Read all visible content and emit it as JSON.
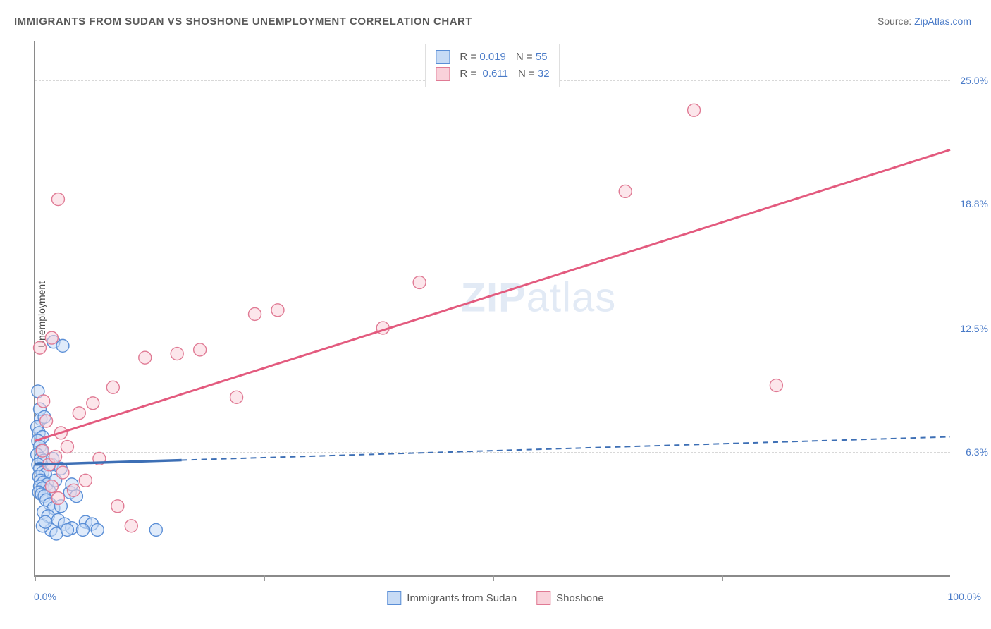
{
  "title": "IMMIGRANTS FROM SUDAN VS SHOSHONE UNEMPLOYMENT CORRELATION CHART",
  "source_label": "Source: ",
  "source_link_text": "ZipAtlas.com",
  "y_axis_label": "Unemployment",
  "watermark_prefix": "ZIP",
  "watermark_suffix": "atlas",
  "chart": {
    "type": "scatter-with-regression",
    "xlim": [
      0,
      100
    ],
    "ylim": [
      0,
      27
    ],
    "x_min_label": "0.0%",
    "x_max_label": "100.0%",
    "y_ticks": [
      {
        "value": 6.3,
        "label": "6.3%"
      },
      {
        "value": 12.5,
        "label": "12.5%"
      },
      {
        "value": 18.8,
        "label": "18.8%"
      },
      {
        "value": 25.0,
        "label": "25.0%"
      }
    ],
    "x_tick_marks": [
      0,
      25,
      50,
      75,
      100
    ],
    "background_color": "#ffffff",
    "grid_color": "#d8d8d8",
    "axis_color": "#8a8a8a"
  },
  "series": {
    "sudan": {
      "label": "Immigrants from Sudan",
      "R_label": "R = ",
      "R_value": "0.019",
      "N_label": "N = ",
      "N_value": "55",
      "fill": "#c7dbf5",
      "stroke": "#5a8ed6",
      "line_color": "#3d6fb5",
      "line_solid_end_x": 16,
      "line_y_at_0": 5.6,
      "line_y_at_100": 7.0,
      "points": [
        [
          0.3,
          9.3
        ],
        [
          0.6,
          7.9
        ],
        [
          0.2,
          7.5
        ],
        [
          0.4,
          7.2
        ],
        [
          0.8,
          7.0
        ],
        [
          0.3,
          6.8
        ],
        [
          0.5,
          6.5
        ],
        [
          0.7,
          6.3
        ],
        [
          0.2,
          6.1
        ],
        [
          0.6,
          5.9
        ],
        [
          0.9,
          5.8
        ],
        [
          0.3,
          5.6
        ],
        [
          0.5,
          5.4
        ],
        [
          0.8,
          5.2
        ],
        [
          1.1,
          5.1
        ],
        [
          0.4,
          5.0
        ],
        [
          0.6,
          4.8
        ],
        [
          0.9,
          4.7
        ],
        [
          1.3,
          4.6
        ],
        [
          0.5,
          4.5
        ],
        [
          0.8,
          4.4
        ],
        [
          1.5,
          4.3
        ],
        [
          0.4,
          4.2
        ],
        [
          0.7,
          4.1
        ],
        [
          1.0,
          4.0
        ],
        [
          1.8,
          5.6
        ],
        [
          2.2,
          4.8
        ],
        [
          2.8,
          5.4
        ],
        [
          1.2,
          3.8
        ],
        [
          1.6,
          3.6
        ],
        [
          2.0,
          3.4
        ],
        [
          0.9,
          3.2
        ],
        [
          1.4,
          3.0
        ],
        [
          2.5,
          2.8
        ],
        [
          3.2,
          2.6
        ],
        [
          4.0,
          2.4
        ],
        [
          5.5,
          2.7
        ],
        [
          6.2,
          2.6
        ],
        [
          3.8,
          4.2
        ],
        [
          1.7,
          2.3
        ],
        [
          2.3,
          2.1
        ],
        [
          0.8,
          2.5
        ],
        [
          1.1,
          2.7
        ],
        [
          2.8,
          3.5
        ],
        [
          4.5,
          4.0
        ],
        [
          1.9,
          5.9
        ],
        [
          0.5,
          8.4
        ],
        [
          1.0,
          8.0
        ],
        [
          13.2,
          2.3
        ],
        [
          3.5,
          2.3
        ],
        [
          5.2,
          2.3
        ],
        [
          6.8,
          2.3
        ],
        [
          2.0,
          11.8
        ],
        [
          3.0,
          11.6
        ],
        [
          4.0,
          4.6
        ]
      ]
    },
    "shoshone": {
      "label": "Shoshone",
      "R_label": "R = ",
      "R_value": "0.611",
      "N_label": "N = ",
      "N_value": "32",
      "fill": "#f9d1da",
      "stroke": "#e07a94",
      "line_color": "#e35a7e",
      "line_y_at_0": 6.8,
      "line_y_at_100": 21.5,
      "points": [
        [
          0.8,
          6.3
        ],
        [
          1.5,
          5.6
        ],
        [
          2.2,
          6.0
        ],
        [
          3.0,
          5.2
        ],
        [
          1.8,
          4.5
        ],
        [
          2.5,
          3.9
        ],
        [
          4.2,
          4.3
        ],
        [
          5.5,
          4.8
        ],
        [
          7.0,
          5.9
        ],
        [
          9.0,
          3.5
        ],
        [
          10.5,
          2.5
        ],
        [
          4.8,
          8.2
        ],
        [
          6.3,
          8.7
        ],
        [
          8.5,
          9.5
        ],
        [
          12.0,
          11.0
        ],
        [
          15.5,
          11.2
        ],
        [
          18.0,
          11.4
        ],
        [
          22.0,
          9.0
        ],
        [
          24.0,
          13.2
        ],
        [
          26.5,
          13.4
        ],
        [
          38.0,
          12.5
        ],
        [
          42.0,
          14.8
        ],
        [
          64.5,
          19.4
        ],
        [
          72.0,
          23.5
        ],
        [
          81.0,
          9.6
        ],
        [
          1.2,
          7.8
        ],
        [
          2.8,
          7.2
        ],
        [
          0.5,
          11.5
        ],
        [
          1.8,
          12.0
        ],
        [
          2.5,
          19.0
        ],
        [
          0.9,
          8.8
        ],
        [
          3.5,
          6.5
        ]
      ]
    }
  }
}
